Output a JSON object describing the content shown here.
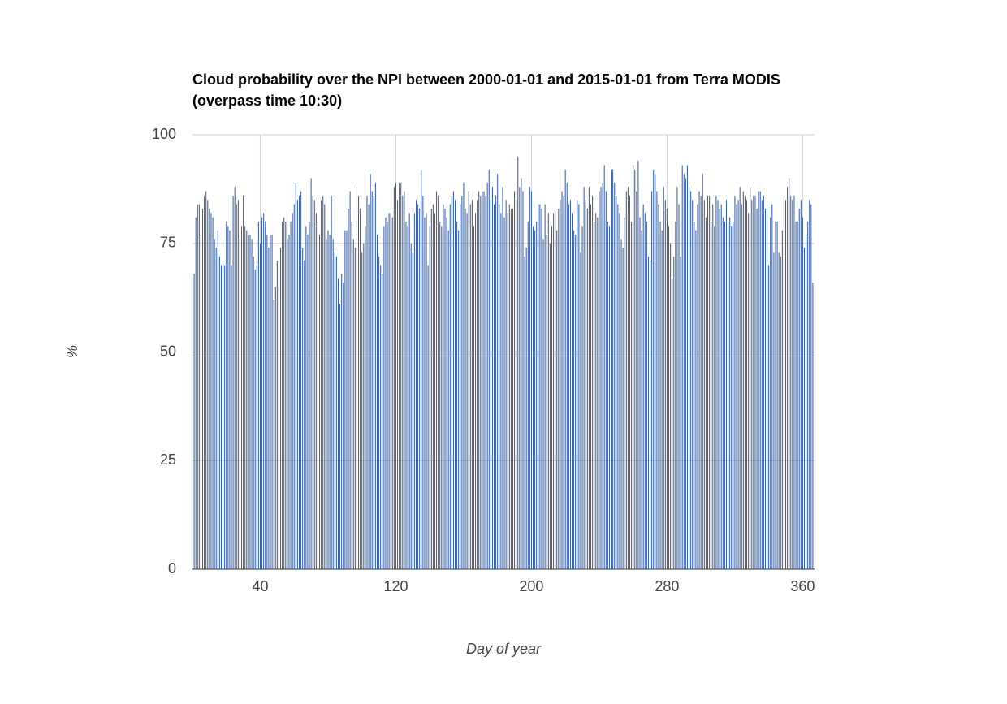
{
  "chart_data": {
    "type": "bar",
    "title": "Cloud probability over the NPI between 2000-01-01 and 2015-01-01 from Terra MODIS (overpass time 10:30)",
    "xlabel": "Day of year",
    "ylabel": "%",
    "color": "#3b5fa0",
    "grid": true,
    "xlim": [
      0,
      367
    ],
    "xticks": [
      40,
      120,
      200,
      280,
      360
    ],
    "ylim": [
      0,
      100
    ],
    "yticks": [
      0,
      25,
      50,
      75,
      100
    ],
    "x": [
      1,
      2,
      3,
      4,
      5,
      6,
      7,
      8,
      9,
      10,
      11,
      12,
      13,
      14,
      15,
      16,
      17,
      18,
      19,
      20,
      21,
      22,
      23,
      24,
      25,
      26,
      27,
      28,
      29,
      30,
      31,
      32,
      33,
      34,
      35,
      36,
      37,
      38,
      39,
      40,
      41,
      42,
      43,
      44,
      45,
      46,
      47,
      48,
      49,
      50,
      51,
      52,
      53,
      54,
      55,
      56,
      57,
      58,
      59,
      60,
      61,
      62,
      63,
      64,
      65,
      66,
      67,
      68,
      69,
      70,
      71,
      72,
      73,
      74,
      75,
      76,
      77,
      78,
      79,
      80,
      81,
      82,
      83,
      84,
      85,
      86,
      87,
      88,
      89,
      90,
      91,
      92,
      93,
      94,
      95,
      96,
      97,
      98,
      99,
      100,
      101,
      102,
      103,
      104,
      105,
      106,
      107,
      108,
      109,
      110,
      111,
      112,
      113,
      114,
      115,
      116,
      117,
      118,
      119,
      120,
      121,
      122,
      123,
      124,
      125,
      126,
      127,
      128,
      129,
      130,
      131,
      132,
      133,
      134,
      135,
      136,
      137,
      138,
      139,
      140,
      141,
      142,
      143,
      144,
      145,
      146,
      147,
      148,
      149,
      150,
      151,
      152,
      153,
      154,
      155,
      156,
      157,
      158,
      159,
      160,
      161,
      162,
      163,
      164,
      165,
      166,
      167,
      168,
      169,
      170,
      171,
      172,
      173,
      174,
      175,
      176,
      177,
      178,
      179,
      180,
      181,
      182,
      183,
      184,
      185,
      186,
      187,
      188,
      189,
      190,
      191,
      192,
      193,
      194,
      195,
      196,
      197,
      198,
      199,
      200,
      201,
      202,
      203,
      204,
      205,
      206,
      207,
      208,
      209,
      210,
      211,
      212,
      213,
      214,
      215,
      216,
      217,
      218,
      219,
      220,
      221,
      222,
      223,
      224,
      225,
      226,
      227,
      228,
      229,
      230,
      231,
      232,
      233,
      234,
      235,
      236,
      237,
      238,
      239,
      240,
      241,
      242,
      243,
      244,
      245,
      246,
      247,
      248,
      249,
      250,
      251,
      252,
      253,
      254,
      255,
      256,
      257,
      258,
      259,
      260,
      261,
      262,
      263,
      264,
      265,
      266,
      267,
      268,
      269,
      270,
      271,
      272,
      273,
      274,
      275,
      276,
      277,
      278,
      279,
      280,
      281,
      282,
      283,
      284,
      285,
      286,
      287,
      288,
      289,
      290,
      291,
      292,
      293,
      294,
      295,
      296,
      297,
      298,
      299,
      300,
      301,
      302,
      303,
      304,
      305,
      306,
      307,
      308,
      309,
      310,
      311,
      312,
      313,
      314,
      315,
      316,
      317,
      318,
      319,
      320,
      321,
      322,
      323,
      324,
      325,
      326,
      327,
      328,
      329,
      330,
      331,
      332,
      333,
      334,
      335,
      336,
      337,
      338,
      339,
      340,
      341,
      342,
      343,
      344,
      345,
      346,
      347,
      348,
      349,
      350,
      351,
      352,
      353,
      354,
      355,
      356,
      357,
      358,
      359,
      360,
      361,
      362,
      363,
      364,
      365,
      366
    ],
    "values": [
      68,
      81,
      84,
      84,
      77,
      83,
      86,
      87,
      85,
      83,
      82,
      81,
      76,
      74,
      78,
      72,
      70,
      71,
      70,
      80,
      79,
      78,
      70,
      86,
      88,
      84,
      85,
      76,
      79,
      86,
      79,
      78,
      77,
      77,
      76,
      72,
      69,
      70,
      80,
      75,
      81,
      82,
      80,
      77,
      74,
      77,
      77,
      62,
      65,
      71,
      70,
      74,
      80,
      81,
      80,
      76,
      77,
      80,
      82,
      84,
      89,
      85,
      86,
      87,
      74,
      71,
      79,
      77,
      80,
      90,
      86,
      85,
      82,
      80,
      77,
      85,
      86,
      84,
      76,
      78,
      77,
      86,
      76,
      73,
      72,
      67,
      61,
      68,
      66,
      78,
      78,
      83,
      87,
      80,
      76,
      74,
      88,
      86,
      83,
      73,
      75,
      79,
      86,
      84,
      91,
      87,
      86,
      89,
      77,
      72,
      70,
      68,
      79,
      81,
      80,
      82,
      82,
      81,
      88,
      89,
      85,
      89,
      89,
      86,
      87,
      80,
      79,
      82,
      75,
      73,
      82,
      85,
      84,
      83,
      92,
      86,
      81,
      82,
      70,
      79,
      83,
      84,
      82,
      87,
      86,
      80,
      79,
      84,
      83,
      81,
      78,
      84,
      86,
      87,
      85,
      80,
      78,
      84,
      86,
      89,
      83,
      82,
      87,
      84,
      85,
      79,
      82,
      85,
      87,
      86,
      87,
      87,
      86,
      89,
      92,
      85,
      88,
      84,
      86,
      91,
      84,
      82,
      88,
      81,
      85,
      82,
      84,
      83,
      83,
      87,
      85,
      95,
      88,
      90,
      87,
      72,
      74,
      80,
      88,
      87,
      79,
      78,
      80,
      84,
      84,
      83,
      76,
      84,
      77,
      82,
      75,
      79,
      82,
      82,
      78,
      83,
      85,
      87,
      86,
      92,
      89,
      84,
      85,
      82,
      78,
      77,
      85,
      84,
      73,
      79,
      88,
      85,
      83,
      88,
      84,
      86,
      80,
      82,
      81,
      87,
      88,
      89,
      93,
      87,
      80,
      79,
      92,
      92,
      89,
      86,
      84,
      82,
      76,
      74,
      81,
      87,
      88,
      86,
      80,
      93,
      92,
      87,
      94,
      81,
      78,
      84,
      82,
      80,
      72,
      71,
      87,
      92,
      91,
      87,
      84,
      80,
      78,
      88,
      85,
      83,
      79,
      75,
      67,
      72,
      80,
      88,
      84,
      72,
      93,
      91,
      90,
      93,
      88,
      87,
      85,
      80,
      78,
      84,
      87,
      86,
      91,
      85,
      81,
      86,
      86,
      80,
      84,
      79,
      86,
      85,
      83,
      84,
      81,
      80,
      85,
      80,
      81,
      79,
      80,
      86,
      84,
      85,
      88,
      84,
      87,
      86,
      85,
      82,
      88,
      85,
      86,
      86,
      83,
      87,
      87,
      85,
      86,
      83,
      84,
      70,
      81,
      84,
      73,
      80,
      80,
      73,
      72,
      78,
      86,
      85,
      88,
      90,
      86,
      85,
      86,
      80,
      80,
      83,
      85,
      81,
      74,
      77,
      80,
      85,
      84,
      66
    ]
  }
}
